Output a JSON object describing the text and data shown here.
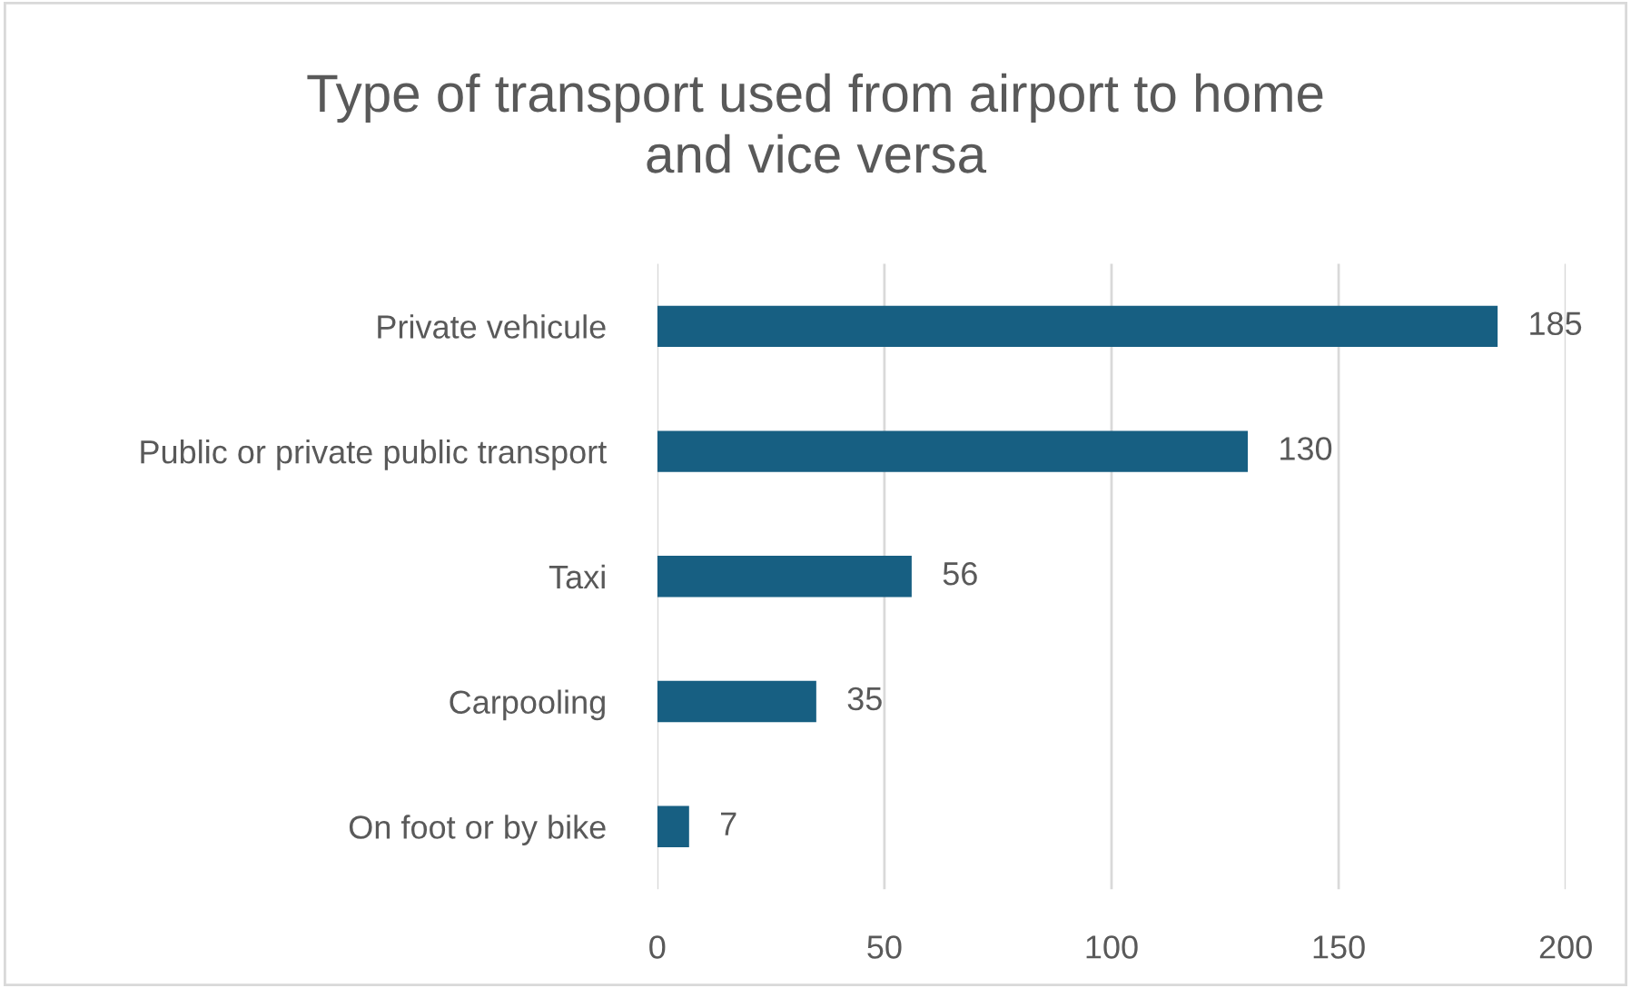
{
  "chart_data": {
    "type": "bar",
    "title": "Type of transport used from airport to home\nand vice versa",
    "orientation": "horizontal",
    "categories": [
      "Private vehicule",
      "Public or private public transport",
      "Taxi",
      "Carpooling",
      "On foot or by bike"
    ],
    "values": [
      185,
      130,
      56,
      35,
      7
    ],
    "color": "#175f82",
    "xlim": [
      0,
      200
    ],
    "xticks": [
      0,
      50,
      100,
      150,
      200
    ],
    "grid": "x",
    "data_labels": true,
    "legend": false
  }
}
